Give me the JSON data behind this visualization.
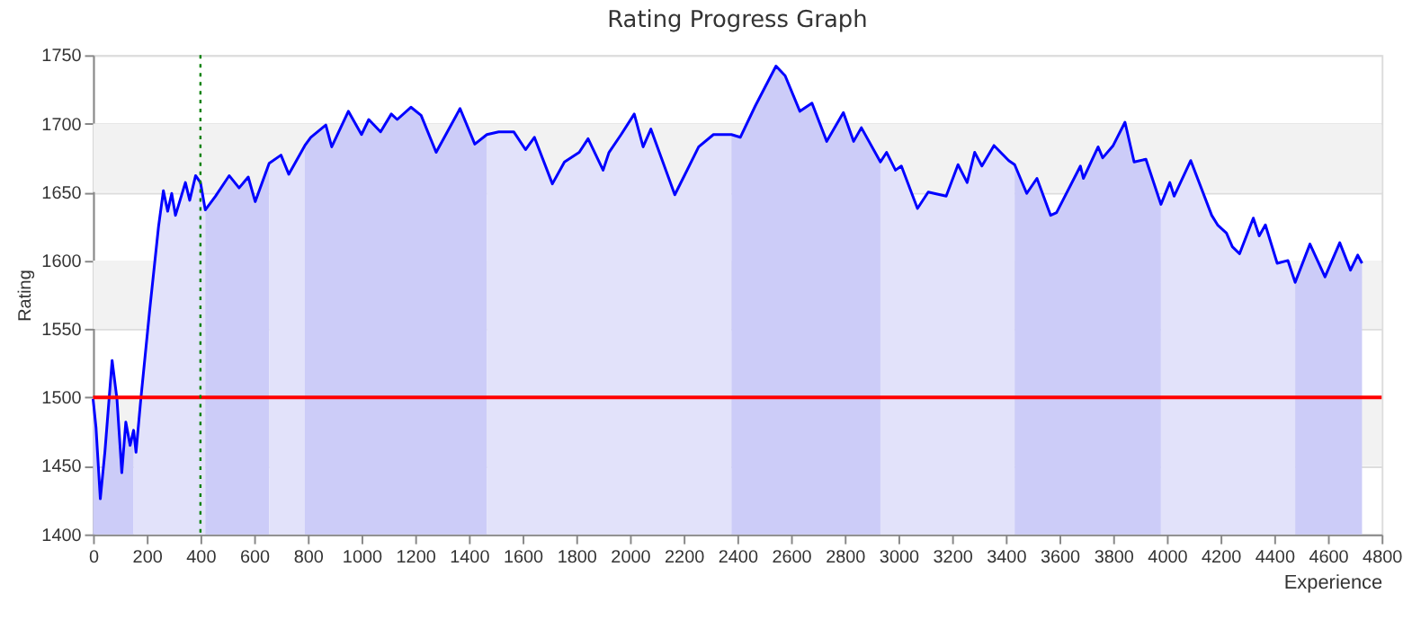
{
  "chart_data": {
    "type": "line",
    "title": "Rating Progress Graph",
    "xlabel": "Experience",
    "ylabel": "Rating",
    "xlim": [
      0,
      4800
    ],
    "xticks": [
      0,
      200,
      400,
      600,
      800,
      1000,
      1200,
      1400,
      1600,
      1800,
      2000,
      2200,
      2400,
      2600,
      2800,
      3000,
      3200,
      3400,
      3600,
      3800,
      4000,
      4200,
      4400,
      4600,
      4800
    ],
    "ylim": [
      1400,
      1750
    ],
    "yticks": [
      1400,
      1450,
      1500,
      1550,
      1600,
      1650,
      1700,
      1750
    ],
    "grid": "y",
    "bands": [
      {
        "axis": "y",
        "from": 1450,
        "to": 1500,
        "color": "#f2f2f2"
      },
      {
        "axis": "y",
        "from": 1550,
        "to": 1600,
        "color": "#f2f2f2"
      },
      {
        "axis": "y",
        "from": 1650,
        "to": 1700,
        "color": "#f2f2f2"
      }
    ],
    "ref_lines": [
      {
        "axis": "y",
        "value": 1500,
        "color": "#ff0000",
        "line_style": "solid"
      },
      {
        "axis": "x",
        "value": 400,
        "color": "#008000",
        "line_style": "dotted"
      }
    ],
    "series": [
      {
        "type": "area",
        "color": "#ccccf8",
        "x": [
          0,
          11,
          27,
          44,
          71,
          89,
          107,
          122,
          138,
          151
        ],
        "values": [
          1499,
          1478,
          1426,
          1460,
          1527,
          1499,
          1445,
          1482,
          1465,
          1476
        ]
      },
      {
        "type": "area",
        "color": "#e2e2fa",
        "x": [
          151,
          160,
          178,
          211,
          244,
          262,
          278,
          293,
          307,
          344,
          360,
          382,
          400,
          418
        ],
        "values": [
          1476,
          1460,
          1499,
          1564,
          1625,
          1651,
          1636,
          1649,
          1633,
          1657,
          1644,
          1662,
          1657,
          1637
        ]
      },
      {
        "type": "area",
        "color": "#ccccf8",
        "x": [
          418,
          456,
          507,
          544,
          578,
          604,
          656
        ],
        "values": [
          1637,
          1647,
          1662,
          1653,
          1661,
          1643,
          1671
        ]
      },
      {
        "type": "area",
        "color": "#e2e2fa",
        "x": [
          656,
          700,
          729,
          789
        ],
        "values": [
          1671,
          1677,
          1663,
          1684
        ]
      },
      {
        "type": "area",
        "color": "#ccccf8",
        "x": [
          789,
          811,
          867,
          889,
          951,
          1000,
          1027,
          1071,
          1111,
          1133,
          1184,
          1222,
          1278,
          1367,
          1422,
          1467
        ],
        "values": [
          1684,
          1690,
          1699,
          1683,
          1709,
          1692,
          1703,
          1694,
          1707,
          1703,
          1712,
          1706,
          1679,
          1711,
          1685,
          1692
        ]
      },
      {
        "type": "area",
        "color": "#e2e2fa",
        "x": [
          1467,
          1511,
          1567,
          1611,
          1644,
          1711,
          1756,
          1811,
          1844,
          1900,
          1922,
          1967,
          2016,
          2049,
          2078,
          2167,
          2256,
          2311,
          2378
        ],
        "values": [
          1692,
          1694,
          1694,
          1681,
          1690,
          1656,
          1672,
          1679,
          1689,
          1666,
          1679,
          1692,
          1707,
          1683,
          1696,
          1648,
          1683,
          1692,
          1692
        ]
      },
      {
        "type": "area",
        "color": "#ccccf8",
        "x": [
          2378,
          2411,
          2467,
          2544,
          2578,
          2633,
          2678,
          2733,
          2795,
          2833,
          2862,
          2933
        ],
        "values": [
          1692,
          1690,
          1713,
          1742,
          1735,
          1709,
          1715,
          1687,
          1708,
          1687,
          1697,
          1672
        ]
      },
      {
        "type": "area",
        "color": "#e2e2fa",
        "x": [
          2933,
          2956,
          2989,
          3011,
          3071,
          3111,
          3178,
          3222,
          3256,
          3284,
          3311,
          3356,
          3411,
          3433
        ],
        "values": [
          1672,
          1679,
          1666,
          1669,
          1638,
          1650,
          1647,
          1670,
          1657,
          1679,
          1669,
          1684,
          1673,
          1670
        ]
      },
      {
        "type": "area",
        "color": "#ccccf8",
        "x": [
          3433,
          3478,
          3516,
          3567,
          3589,
          3678,
          3689,
          3744,
          3761,
          3800,
          3844,
          3878,
          3922,
          3978
        ],
        "values": [
          1670,
          1649,
          1660,
          1633,
          1635,
          1669,
          1660,
          1683,
          1675,
          1684,
          1701,
          1672,
          1674,
          1641
        ]
      },
      {
        "type": "area",
        "color": "#e2e2fa",
        "x": [
          3978,
          4011,
          4027,
          4089,
          4167,
          4189,
          4222,
          4244,
          4271,
          4322,
          4344,
          4367,
          4411,
          4451,
          4478
        ],
        "values": [
          1641,
          1657,
          1647,
          1673,
          1633,
          1626,
          1620,
          1610,
          1605,
          1631,
          1618,
          1626,
          1598,
          1600,
          1584
        ]
      },
      {
        "type": "area",
        "color": "#ccccf8",
        "x": [
          4478,
          4533,
          4589,
          4644,
          4684,
          4711,
          4727
        ],
        "values": [
          1584,
          1612,
          1588,
          1613,
          1593,
          1604,
          1598
        ]
      },
      {
        "color": "#0000ff",
        "x": [
          0,
          11,
          27,
          44,
          71,
          89,
          107,
          122,
          138,
          151,
          160,
          178,
          211,
          244,
          262,
          278,
          293,
          307,
          344,
          360,
          382,
          400,
          418,
          456,
          507,
          544,
          578,
          604,
          656,
          700,
          729,
          789,
          811,
          867,
          889,
          951,
          1000,
          1027,
          1071,
          1111,
          1133,
          1184,
          1222,
          1278,
          1367,
          1422,
          1467,
          1511,
          1567,
          1611,
          1644,
          1711,
          1756,
          1811,
          1844,
          1900,
          1922,
          1967,
          2016,
          2049,
          2078,
          2167,
          2256,
          2311,
          2378,
          2411,
          2467,
          2544,
          2578,
          2633,
          2678,
          2733,
          2795,
          2833,
          2862,
          2933,
          2956,
          2989,
          3011,
          3071,
          3111,
          3178,
          3222,
          3256,
          3284,
          3311,
          3356,
          3411,
          3433,
          3478,
          3516,
          3567,
          3589,
          3678,
          3689,
          3744,
          3761,
          3800,
          3844,
          3878,
          3922,
          3978,
          4011,
          4027,
          4089,
          4167,
          4189,
          4222,
          4244,
          4271,
          4322,
          4344,
          4367,
          4411,
          4451,
          4478,
          4533,
          4589,
          4644,
          4684,
          4711,
          4727
        ],
        "values": [
          1499,
          1478,
          1426,
          1460,
          1527,
          1499,
          1445,
          1482,
          1465,
          1476,
          1460,
          1499,
          1564,
          1625,
          1651,
          1636,
          1649,
          1633,
          1657,
          1644,
          1662,
          1657,
          1637,
          1647,
          1662,
          1653,
          1661,
          1643,
          1671,
          1677,
          1663,
          1684,
          1690,
          1699,
          1683,
          1709,
          1692,
          1703,
          1694,
          1707,
          1703,
          1712,
          1706,
          1679,
          1711,
          1685,
          1692,
          1694,
          1694,
          1681,
          1690,
          1656,
          1672,
          1679,
          1689,
          1666,
          1679,
          1692,
          1707,
          1683,
          1696,
          1648,
          1683,
          1692,
          1692,
          1690,
          1713,
          1742,
          1735,
          1709,
          1715,
          1687,
          1708,
          1687,
          1697,
          1672,
          1679,
          1666,
          1669,
          1638,
          1650,
          1647,
          1670,
          1657,
          1679,
          1669,
          1684,
          1673,
          1670,
          1649,
          1660,
          1633,
          1635,
          1669,
          1660,
          1683,
          1675,
          1684,
          1701,
          1672,
          1674,
          1641,
          1657,
          1647,
          1673,
          1633,
          1626,
          1620,
          1610,
          1605,
          1631,
          1618,
          1626,
          1598,
          1600,
          1584,
          1612,
          1588,
          1613,
          1593,
          1604,
          1598
        ]
      }
    ]
  }
}
